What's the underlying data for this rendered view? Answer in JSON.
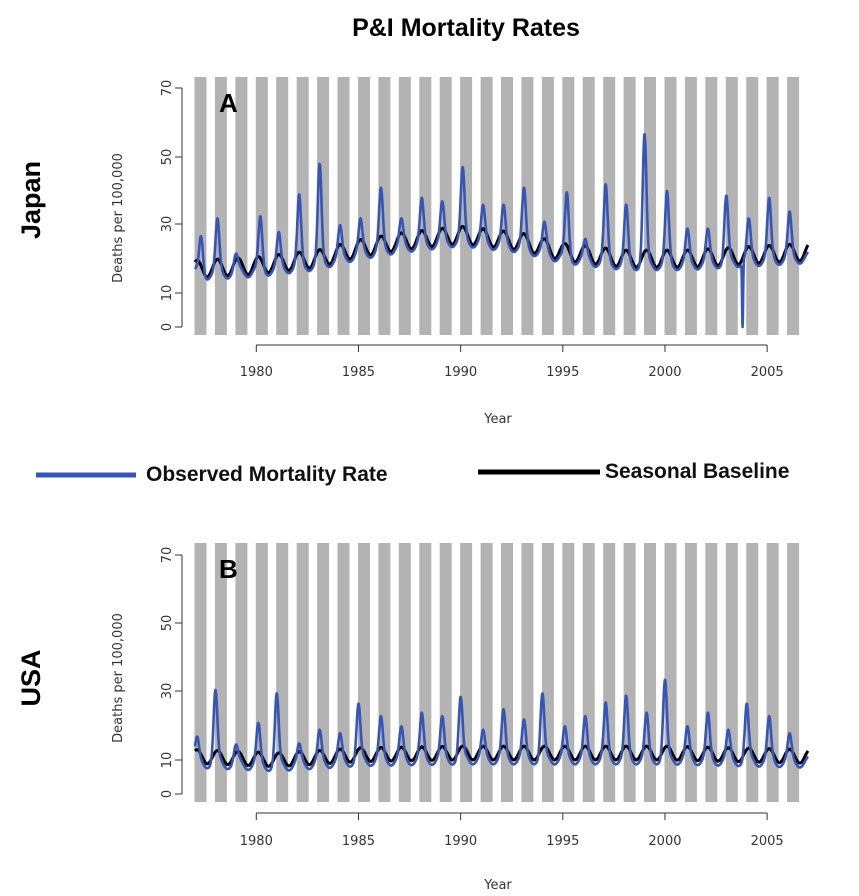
{
  "title": "P&I Mortality Rates",
  "legend": {
    "observed_label": "Observed Mortality Rate",
    "baseline_label": "Seasonal Baseline",
    "observed_color": "#3556b8",
    "baseline_color": "#000000",
    "season_bar_color": "#b3b3b3"
  },
  "chart_data": [
    {
      "type": "line",
      "panel_label": "A",
      "country": "Japan",
      "xlabel": "Year",
      "ylabel": "Deaths per 100,000",
      "xlim": [
        1977,
        2007
      ],
      "ylim": [
        0,
        70
      ],
      "yticks": [
        0,
        10,
        30,
        50,
        70
      ],
      "xticks": [
        1980,
        1985,
        1990,
        1995,
        2000,
        2005
      ],
      "season_bars": [
        1977.0,
        1978.0,
        1979.0,
        1980.0,
        1981.0,
        1982.0,
        1983.0,
        1984.0,
        1985.0,
        1986.0,
        1987.0,
        1988.0,
        1989.0,
        1990.0,
        1991.0,
        1992.0,
        1993.0,
        1994.0,
        1995.0,
        1996.0,
        1997.0,
        1998.0,
        1999.0,
        2000.0,
        2001.0,
        2002.0,
        2003.0,
        2004.0,
        2005.0,
        2006.0
      ],
      "series": [
        {
          "name": "Observed Mortality Rate",
          "peaks": [
            {
              "x": 1977.3,
              "y": 26
            },
            {
              "x": 1978.1,
              "y": 30
            },
            {
              "x": 1979.0,
              "y": 20
            },
            {
              "x": 1980.2,
              "y": 31
            },
            {
              "x": 1981.1,
              "y": 26
            },
            {
              "x": 1982.1,
              "y": 37
            },
            {
              "x": 1983.1,
              "y": 46
            },
            {
              "x": 1984.1,
              "y": 28
            },
            {
              "x": 1985.1,
              "y": 30
            },
            {
              "x": 1986.1,
              "y": 39
            },
            {
              "x": 1987.1,
              "y": 30
            },
            {
              "x": 1988.1,
              "y": 36
            },
            {
              "x": 1989.1,
              "y": 35
            },
            {
              "x": 1990.1,
              "y": 45
            },
            {
              "x": 1991.1,
              "y": 34
            },
            {
              "x": 1992.1,
              "y": 34
            },
            {
              "x": 1993.1,
              "y": 39
            },
            {
              "x": 1994.1,
              "y": 29
            },
            {
              "x": 1995.2,
              "y": 38
            },
            {
              "x": 1996.1,
              "y": 24
            },
            {
              "x": 1997.1,
              "y": 40
            },
            {
              "x": 1998.1,
              "y": 34
            },
            {
              "x": 1999.0,
              "y": 55
            },
            {
              "x": 2000.1,
              "y": 38
            },
            {
              "x": 2001.1,
              "y": 27
            },
            {
              "x": 2002.1,
              "y": 27
            },
            {
              "x": 2003.0,
              "y": 37
            },
            {
              "x": 2004.1,
              "y": 30
            },
            {
              "x": 2005.1,
              "y": 36
            },
            {
              "x": 2006.1,
              "y": 32
            }
          ],
          "dips": [
            {
              "x": 2003.8,
              "y": 2
            }
          ]
        },
        {
          "name": "Seasonal Baseline",
          "trend": [
            {
              "x": 1977,
              "y": 17
            },
            {
              "x": 1980,
              "y": 18
            },
            {
              "x": 1983,
              "y": 20
            },
            {
              "x": 1985,
              "y": 23
            },
            {
              "x": 1987,
              "y": 25
            },
            {
              "x": 1990,
              "y": 27
            },
            {
              "x": 1993,
              "y": 25
            },
            {
              "x": 1995,
              "y": 22
            },
            {
              "x": 1998,
              "y": 20
            },
            {
              "x": 2001,
              "y": 20
            },
            {
              "x": 2004,
              "y": 21
            },
            {
              "x": 2007,
              "y": 22
            }
          ],
          "amplitude": 2.5
        }
      ]
    },
    {
      "type": "line",
      "panel_label": "B",
      "country": "USA",
      "xlabel": "Year",
      "ylabel": "Deaths per 100,000",
      "xlim": [
        1977,
        2007
      ],
      "ylim": [
        0,
        70
      ],
      "yticks": [
        0,
        10,
        30,
        50,
        70
      ],
      "xticks": [
        1980,
        1985,
        1990,
        1995,
        2000,
        2005
      ],
      "season_bars": [
        1977.0,
        1978.0,
        1979.0,
        1980.0,
        1981.0,
        1982.0,
        1983.0,
        1984.0,
        1985.0,
        1986.0,
        1987.0,
        1988.0,
        1989.0,
        1990.0,
        1991.0,
        1992.0,
        1993.0,
        1994.0,
        1995.0,
        1996.0,
        1997.0,
        1998.0,
        1999.0,
        2000.0,
        2001.0,
        2002.0,
        2003.0,
        2004.0,
        2005.0,
        2006.0
      ],
      "series": [
        {
          "name": "Observed Mortality Rate",
          "peaks": [
            {
              "x": 1977.1,
              "y": 15
            },
            {
              "x": 1978.0,
              "y": 29
            },
            {
              "x": 1979.0,
              "y": 13
            },
            {
              "x": 1980.1,
              "y": 19
            },
            {
              "x": 1981.0,
              "y": 28
            },
            {
              "x": 1982.1,
              "y": 13
            },
            {
              "x": 1983.1,
              "y": 17
            },
            {
              "x": 1984.1,
              "y": 16
            },
            {
              "x": 1985.0,
              "y": 25
            },
            {
              "x": 1986.1,
              "y": 21
            },
            {
              "x": 1987.1,
              "y": 18
            },
            {
              "x": 1988.1,
              "y": 22
            },
            {
              "x": 1989.1,
              "y": 21
            },
            {
              "x": 1990.0,
              "y": 27
            },
            {
              "x": 1991.1,
              "y": 17
            },
            {
              "x": 1992.1,
              "y": 23
            },
            {
              "x": 1993.1,
              "y": 20
            },
            {
              "x": 1994.0,
              "y": 28
            },
            {
              "x": 1995.1,
              "y": 18
            },
            {
              "x": 1996.1,
              "y": 21
            },
            {
              "x": 1997.1,
              "y": 25
            },
            {
              "x": 1998.1,
              "y": 27
            },
            {
              "x": 1999.1,
              "y": 22
            },
            {
              "x": 2000.0,
              "y": 32
            },
            {
              "x": 2001.1,
              "y": 18
            },
            {
              "x": 2002.1,
              "y": 22
            },
            {
              "x": 2003.1,
              "y": 17
            },
            {
              "x": 2004.0,
              "y": 25
            },
            {
              "x": 2005.1,
              "y": 21
            },
            {
              "x": 2006.1,
              "y": 16
            }
          ],
          "dips": []
        },
        {
          "name": "Seasonal Baseline",
          "trend": [
            {
              "x": 1977,
              "y": 11
            },
            {
              "x": 1981,
              "y": 10
            },
            {
              "x": 1985,
              "y": 11.5
            },
            {
              "x": 1990,
              "y": 12
            },
            {
              "x": 1995,
              "y": 12
            },
            {
              "x": 2000,
              "y": 12
            },
            {
              "x": 2007,
              "y": 11
            }
          ],
          "amplitude": 2
        }
      ]
    }
  ]
}
